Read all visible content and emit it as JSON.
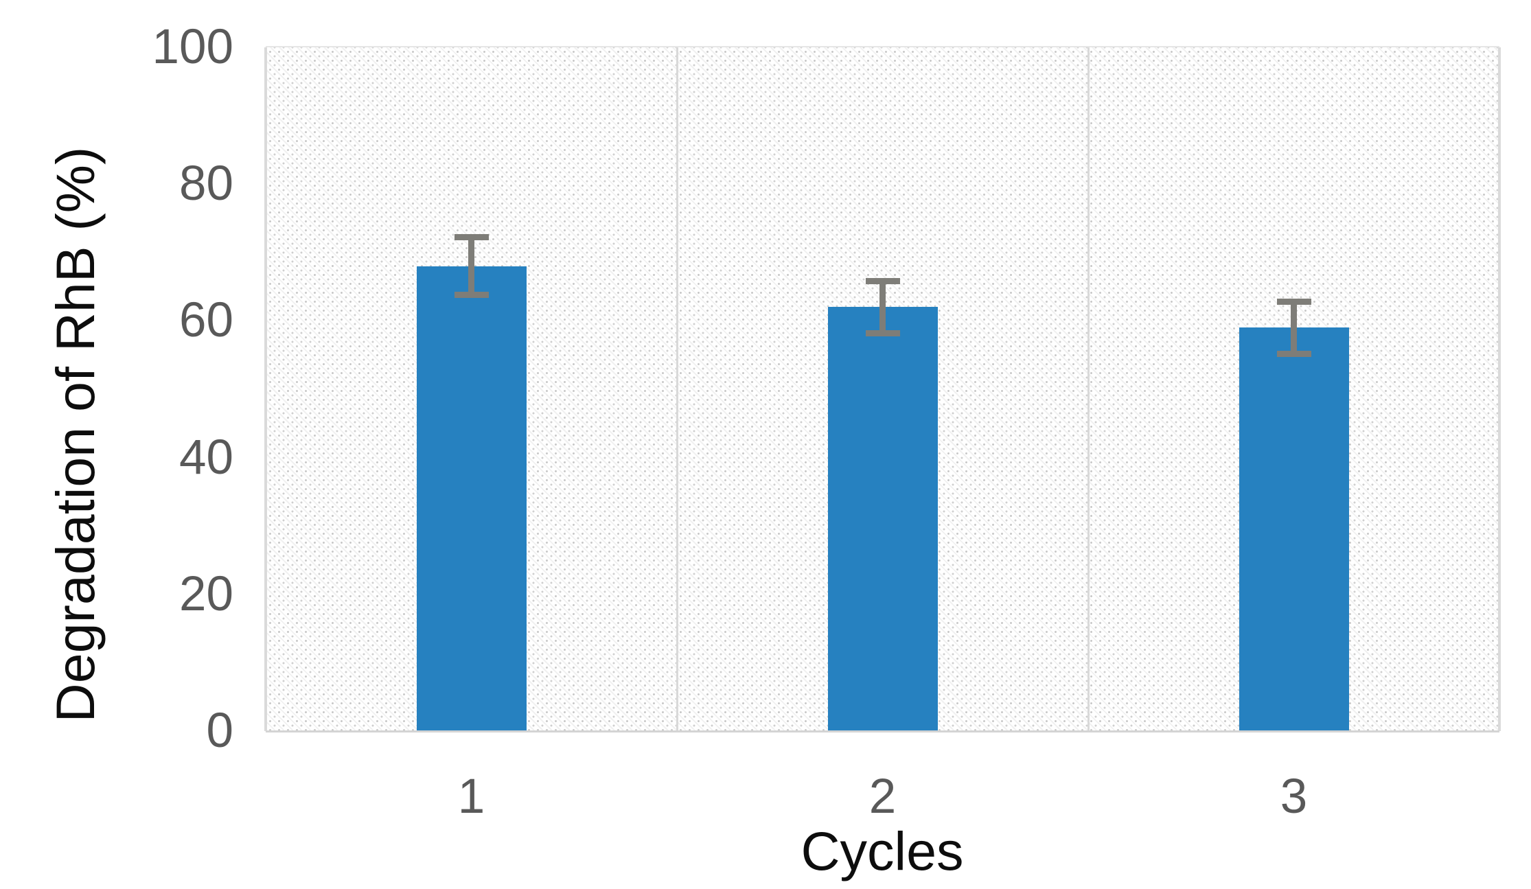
{
  "chart_data": {
    "type": "bar",
    "title": "",
    "xlabel": "Cycles",
    "ylabel": "Degradation of RhB (%)",
    "categories": [
      "1",
      "2",
      "3"
    ],
    "values": [
      68,
      62,
      59
    ],
    "error_bars_plus_minus": [
      4.2,
      3.8,
      3.8
    ],
    "ylim": [
      0,
      100
    ],
    "yticks": [
      100,
      80,
      60,
      40,
      20,
      0
    ],
    "legend": "none",
    "grid": "no horizontal gridlines; vertical divider lines between the three category panels",
    "plot_area_pattern": "light gray dotted diagonal hatch on white",
    "colors": {
      "bar_fill": "#2681c0",
      "error_bar": "#7e7d78",
      "tick_label": "#595959",
      "axis_title": "#0d0d0d",
      "panel_divider": "#d9d9d9",
      "axis_line": "#d4d4d4",
      "hatch_dot": "#cbcbcb"
    }
  }
}
